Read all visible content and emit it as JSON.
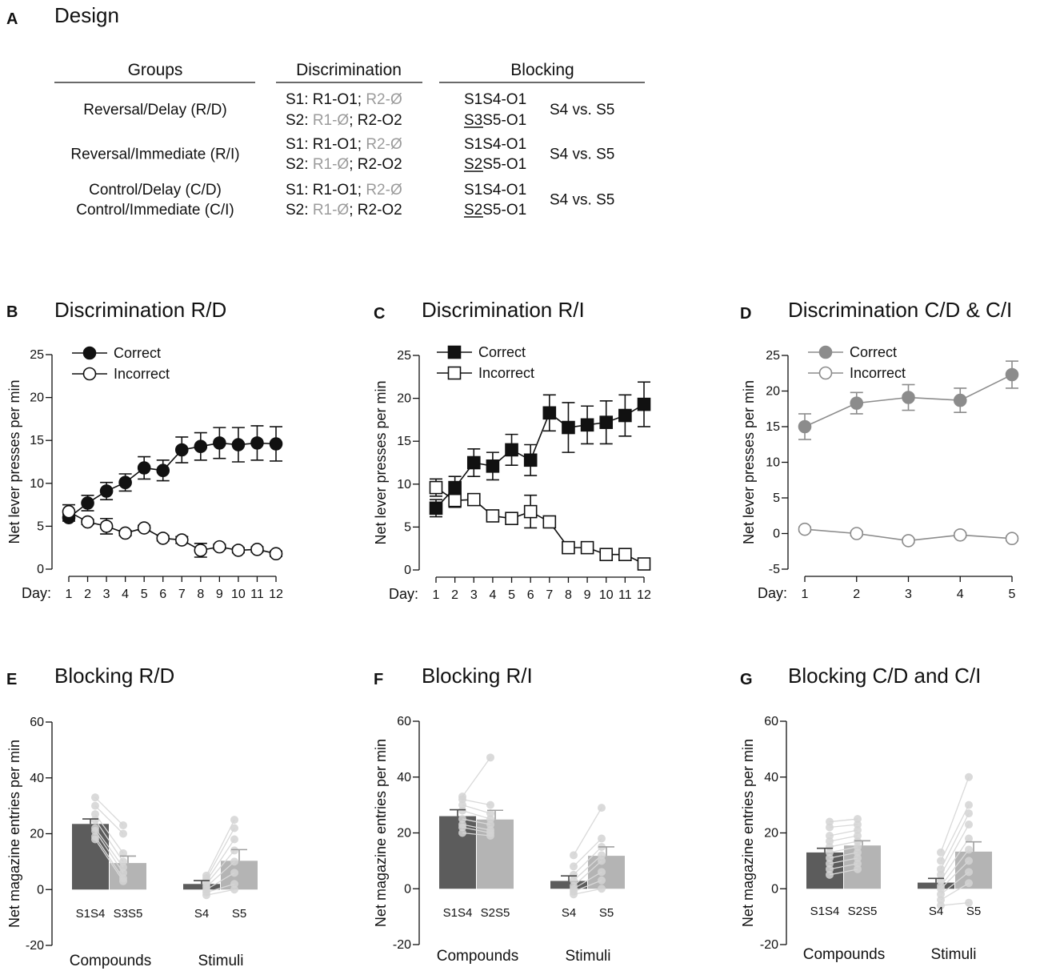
{
  "design": {
    "panel_label": "A",
    "title": "Design",
    "headers": {
      "groups": "Groups",
      "discrimination": "Discrimination",
      "blocking": "Blocking"
    },
    "rows": [
      {
        "groups": [
          "Reversal/Delay (R/D)"
        ],
        "disc1": [
          "S1: R1-O1; ",
          "R2-Ø"
        ],
        "disc2": [
          "S2: ",
          "R1-Ø",
          "; R2-O2"
        ],
        "block1": "S1S4-O1",
        "block2u": "S3",
        "block2r": "S5-O1",
        "test": "S4 vs. S5"
      },
      {
        "groups": [
          "Reversal/Immediate (R/I)"
        ],
        "disc1": [
          "S1: R1-O1; ",
          "R2-Ø"
        ],
        "disc2": [
          "S2: ",
          "R1-Ø",
          "; R2-O2"
        ],
        "block1": "S1S4-O1",
        "block2u": "S2",
        "block2r": "S5-O1",
        "test": "S4 vs. S5"
      },
      {
        "groups": [
          "Control/Delay (C/D)",
          "Control/Immediate (C/I)"
        ],
        "disc1": [
          "S1: R1-O1; ",
          "R2-Ø"
        ],
        "disc2": [
          "S2: ",
          "R1-Ø",
          "; R2-O2"
        ],
        "block1": "S1S4-O1",
        "block2u": "S2",
        "block2r": "S5-O1",
        "test": "S4 vs. S5"
      }
    ]
  },
  "chart_data": [
    {
      "id": "B",
      "type": "line",
      "title": "Discrimination R/D",
      "ylabel": "Net lever presses per min",
      "xlabel": "Day:",
      "x": [
        1,
        2,
        3,
        4,
        5,
        6,
        7,
        8,
        9,
        10,
        11,
        12
      ],
      "ylim": [
        0,
        25
      ],
      "yticks": [
        0,
        5,
        10,
        15,
        20,
        25
      ],
      "marker": "circle",
      "color": "#111111",
      "legend": [
        "Correct",
        "Incorrect"
      ],
      "series": [
        {
          "name": "Correct",
          "values": [
            6.0,
            7.7,
            9.1,
            10.1,
            11.8,
            11.5,
            13.9,
            14.3,
            14.7,
            14.5,
            14.7,
            14.6
          ],
          "err": [
            0.4,
            0.9,
            1.0,
            1.0,
            1.3,
            1.2,
            1.5,
            1.6,
            1.8,
            2.0,
            2.0,
            2.0
          ]
        },
        {
          "name": "Incorrect",
          "values": [
            6.7,
            5.5,
            5.0,
            4.2,
            4.8,
            3.6,
            3.4,
            2.2,
            2.6,
            2.2,
            2.3,
            1.8
          ],
          "err": [
            0.8,
            0.3,
            0.9,
            0.3,
            0.3,
            0.3,
            0.4,
            0.8,
            0.3,
            0.3,
            0.3,
            0.3
          ]
        }
      ]
    },
    {
      "id": "C",
      "type": "line",
      "title": "Discrimination R/I",
      "ylabel": "Net lever presses per min",
      "xlabel": "Day:",
      "x": [
        1,
        2,
        3,
        4,
        5,
        6,
        7,
        8,
        9,
        10,
        11,
        12
      ],
      "ylim": [
        0,
        25
      ],
      "yticks": [
        0,
        5,
        10,
        15,
        20,
        25
      ],
      "marker": "square",
      "color": "#111111",
      "legend": [
        "Correct",
        "Incorrect"
      ],
      "series": [
        {
          "name": "Correct",
          "values": [
            7.2,
            9.6,
            12.5,
            12.1,
            14.0,
            12.8,
            18.3,
            16.6,
            16.9,
            17.2,
            18.0,
            19.3
          ],
          "err": [
            1.0,
            1.3,
            1.6,
            1.6,
            1.8,
            1.8,
            2.1,
            2.9,
            2.2,
            2.5,
            2.4,
            2.6
          ]
        },
        {
          "name": "Incorrect",
          "values": [
            9.6,
            8.1,
            8.2,
            6.3,
            6.0,
            6.8,
            5.6,
            2.6,
            2.6,
            1.8,
            1.8,
            0.7
          ],
          "err": [
            1.0,
            0.8,
            0.6,
            0.6,
            0.4,
            1.9,
            0.4,
            0.3,
            0.3,
            0.3,
            0.3,
            0.3
          ]
        }
      ]
    },
    {
      "id": "D",
      "type": "line",
      "title": "Discrimination C/D & C/I",
      "ylabel": "Net lever presses per min",
      "xlabel": "Day:",
      "x": [
        1,
        2,
        3,
        4,
        5
      ],
      "ylim": [
        -5,
        25
      ],
      "yticks": [
        -5,
        0,
        5,
        10,
        15,
        20,
        25
      ],
      "marker": "circle",
      "color": "#8c8c8c",
      "legend": [
        "Correct",
        "Incorrect"
      ],
      "series": [
        {
          "name": "Correct",
          "values": [
            15.0,
            18.3,
            19.1,
            18.7,
            22.3
          ],
          "err": [
            1.8,
            1.5,
            1.8,
            1.7,
            1.9
          ]
        },
        {
          "name": "Incorrect",
          "values": [
            0.6,
            0.0,
            -1.0,
            -0.2,
            -0.7
          ],
          "err": [
            0.3,
            0.3,
            0.3,
            0.3,
            0.3
          ]
        }
      ]
    },
    {
      "id": "E",
      "type": "bar",
      "title": "Blocking R/D",
      "ylabel": "Net magazine entries per min",
      "ylim": [
        -20,
        60
      ],
      "yticks": [
        -20,
        0,
        20,
        40,
        60
      ],
      "groups": [
        "Compounds",
        "Stimuli"
      ],
      "categories": [
        "S1S4",
        "S3S5",
        "S4",
        "S5"
      ],
      "values": [
        23.5,
        9.5,
        2.0,
        10.3
      ],
      "err": [
        1.8,
        2.5,
        1.2,
        4.0
      ],
      "points": [
        [
          33,
          30,
          27,
          25,
          22,
          21,
          19,
          18
        ],
        [
          23,
          20,
          13,
          10,
          8,
          6,
          4,
          3
        ],
        [
          5,
          4,
          3,
          2,
          1,
          0,
          -1,
          -2
        ],
        [
          25,
          22,
          18,
          14,
          10,
          6,
          2,
          0
        ]
      ]
    },
    {
      "id": "F",
      "type": "bar",
      "title": "Blocking R/I",
      "ylabel": "Net magazine entries per min",
      "ylim": [
        -20,
        60
      ],
      "yticks": [
        -20,
        0,
        20,
        40,
        60
      ],
      "groups": [
        "Compounds",
        "Stimuli"
      ],
      "categories": [
        "S1S4",
        "S2S5",
        "S4",
        "S5"
      ],
      "values": [
        26.0,
        24.8,
        2.8,
        11.8
      ],
      "err": [
        2.3,
        3.3,
        1.8,
        3.2
      ],
      "points": [
        [
          33,
          32,
          30,
          28,
          25,
          23,
          22,
          20
        ],
        [
          47,
          30,
          27,
          25,
          23,
          21,
          20,
          19
        ],
        [
          12,
          8,
          5,
          3,
          1,
          0,
          -1,
          -2
        ],
        [
          29,
          18,
          15,
          12,
          10,
          6,
          3,
          0
        ]
      ]
    },
    {
      "id": "G",
      "type": "bar",
      "title": "Blocking C/D and C/I",
      "ylabel": "Net magazine entries per min",
      "ylim": [
        -20,
        60
      ],
      "yticks": [
        -20,
        0,
        20,
        40,
        60
      ],
      "groups": [
        "Compounds",
        "Stimuli"
      ],
      "categories": [
        "S1S4",
        "S2S5",
        "S4",
        "S5"
      ],
      "values": [
        13.0,
        15.5,
        2.2,
        13.3
      ],
      "err": [
        1.5,
        1.7,
        1.5,
        3.5
      ],
      "points": [
        [
          24,
          22,
          19,
          17,
          15,
          13,
          11,
          9,
          7,
          5
        ],
        [
          25,
          23,
          21,
          19,
          17,
          15,
          13,
          11,
          9,
          7
        ],
        [
          13,
          10,
          7,
          5,
          3,
          1,
          0,
          -2,
          -4,
          -6
        ],
        [
          40,
          30,
          27,
          23,
          18,
          14,
          10,
          6,
          2,
          -5
        ]
      ]
    }
  ]
}
